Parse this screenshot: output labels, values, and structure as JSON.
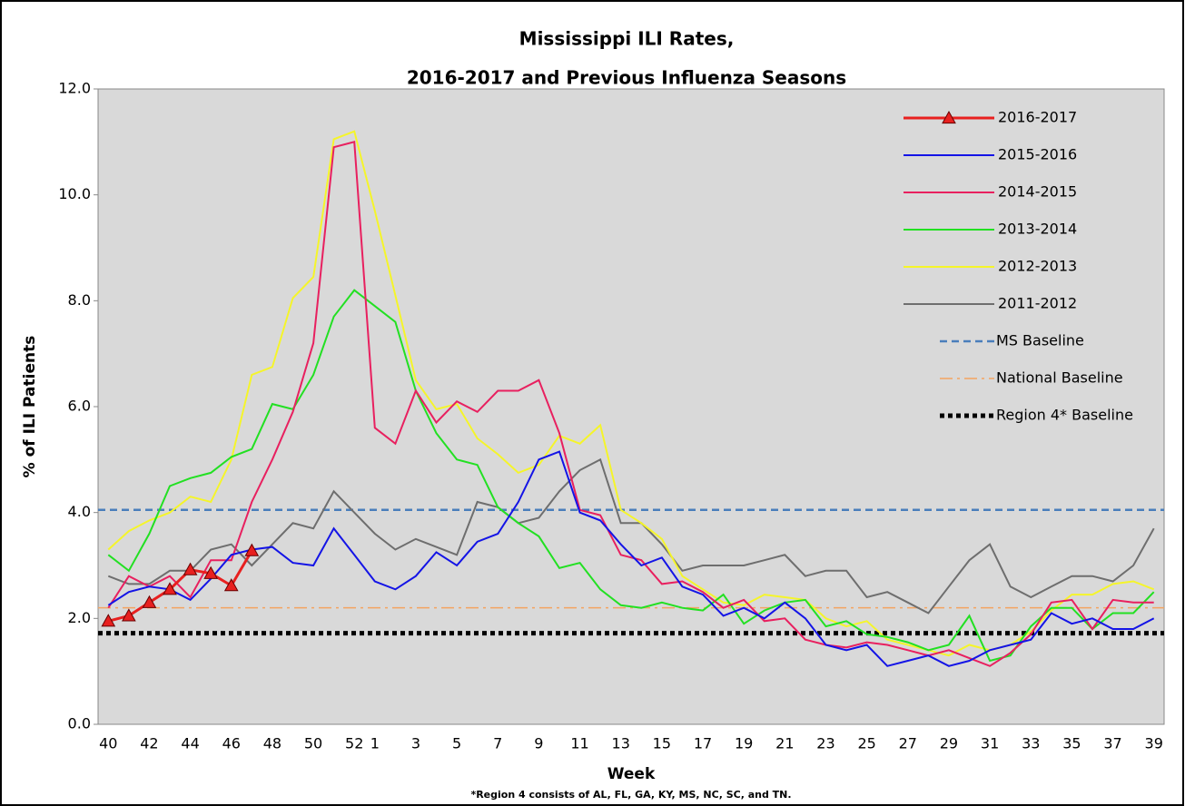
{
  "chart_data": {
    "type": "line",
    "title": [
      "Mississippi ILI Rates,",
      "2016-2017 and Previous Influenza Seasons"
    ],
    "x_label": "Week",
    "y_label": "% of ILI Patients",
    "footnote": "*Region 4 consists of AL, FL, GA, KY, MS, NC, SC, and TN.",
    "categories": [
      "40",
      null,
      "42",
      null,
      "44",
      null,
      "46",
      null,
      "48",
      null,
      "50",
      null,
      "52",
      "1",
      null,
      "3",
      null,
      "5",
      null,
      "7",
      null,
      "9",
      null,
      "11",
      null,
      "13",
      null,
      "15",
      null,
      "17",
      null,
      "19",
      null,
      "21",
      null,
      "23",
      null,
      "25",
      null,
      "27",
      null,
      "29",
      null,
      "31",
      null,
      "33",
      null,
      "35",
      null,
      "37",
      null,
      "39"
    ],
    "ylim": [
      0,
      12
    ],
    "yticks": [
      {
        "value": 0,
        "label": "0.0"
      },
      {
        "value": 2,
        "label": "2.0"
      },
      {
        "value": 4,
        "label": "4.0"
      },
      {
        "value": 6,
        "label": "6.0"
      },
      {
        "value": 8,
        "label": "8.0"
      },
      {
        "value": 10,
        "label": "10.0"
      },
      {
        "value": 12,
        "label": "12.0"
      }
    ],
    "grid": false,
    "plot_background": "#d9d9d9",
    "series": [
      {
        "name": "2016-2017",
        "color": "#e8201f",
        "marker": "triangle",
        "values": [
          1.95,
          2.05,
          2.3,
          2.55,
          2.92,
          2.85,
          2.62,
          3.28,
          null,
          null,
          null,
          null,
          null,
          null,
          null,
          null,
          null,
          null,
          null,
          null,
          null,
          null,
          null,
          null,
          null,
          null,
          null,
          null,
          null,
          null,
          null,
          null,
          null,
          null,
          null,
          null,
          null,
          null,
          null,
          null,
          null,
          null,
          null,
          null,
          null,
          null,
          null,
          null,
          null,
          null,
          null,
          null
        ]
      },
      {
        "name": "2015-2016",
        "color": "#1414e6",
        "values": [
          2.25,
          2.5,
          2.6,
          2.55,
          2.35,
          2.75,
          3.2,
          3.3,
          3.35,
          3.05,
          3.0,
          3.7,
          3.2,
          2.7,
          2.55,
          2.8,
          3.25,
          3.0,
          3.45,
          3.6,
          4.2,
          5.0,
          5.15,
          4.0,
          3.85,
          3.4,
          3.0,
          3.15,
          2.6,
          2.45,
          2.05,
          2.2,
          2.0,
          2.3,
          2.0,
          1.5,
          1.4,
          1.5,
          1.1,
          1.2,
          1.3,
          1.1,
          1.2,
          1.4,
          1.5,
          1.6,
          2.1,
          1.9,
          2.0,
          1.8,
          1.8,
          2.0
        ]
      },
      {
        "name": "2014-2015",
        "color": "#e8205f",
        "values": [
          2.2,
          2.8,
          2.6,
          2.8,
          2.4,
          3.1,
          3.1,
          4.2,
          5.0,
          5.9,
          7.2,
          10.9,
          11.0,
          5.6,
          5.3,
          6.3,
          5.7,
          6.1,
          5.9,
          6.3,
          6.3,
          6.5,
          5.5,
          4.05,
          3.95,
          3.2,
          3.1,
          2.65,
          2.7,
          2.5,
          2.2,
          2.35,
          1.95,
          2.0,
          1.6,
          1.5,
          1.45,
          1.55,
          1.5,
          1.4,
          1.3,
          1.4,
          1.25,
          1.1,
          1.35,
          1.7,
          2.3,
          2.35,
          1.8,
          2.35,
          2.3,
          2.3
        ]
      },
      {
        "name": "2013-2014",
        "color": "#22e022",
        "values": [
          3.2,
          2.9,
          3.6,
          4.5,
          4.65,
          4.75,
          5.05,
          5.2,
          6.05,
          5.95,
          6.6,
          7.7,
          8.2,
          7.9,
          7.6,
          6.3,
          5.5,
          5.0,
          4.9,
          4.1,
          3.8,
          3.55,
          2.95,
          3.05,
          2.55,
          2.25,
          2.2,
          2.3,
          2.2,
          2.15,
          2.45,
          1.9,
          2.15,
          2.3,
          2.35,
          1.85,
          1.95,
          1.7,
          1.65,
          1.55,
          1.4,
          1.5,
          2.05,
          1.2,
          1.3,
          1.85,
          2.2,
          2.2,
          1.8,
          2.1,
          2.1,
          2.5
        ]
      },
      {
        "name": "2012-2013",
        "color": "#f5f52a",
        "values": [
          3.3,
          3.65,
          3.85,
          4.0,
          4.3,
          4.2,
          5.0,
          6.6,
          6.75,
          8.05,
          8.45,
          11.05,
          11.2,
          9.7,
          8.1,
          6.5,
          5.95,
          6.05,
          5.4,
          5.1,
          4.75,
          4.9,
          5.45,
          5.3,
          5.65,
          4.05,
          3.8,
          3.5,
          2.8,
          2.55,
          2.3,
          2.25,
          2.45,
          2.4,
          2.35,
          2.0,
          1.85,
          1.95,
          1.6,
          1.5,
          1.4,
          1.3,
          1.5,
          1.4,
          1.5,
          1.75,
          2.15,
          2.45,
          2.45,
          2.65,
          2.7,
          2.55
        ]
      },
      {
        "name": "2011-2012",
        "color": "#6e6e6e",
        "values": [
          2.8,
          2.65,
          2.65,
          2.9,
          2.9,
          3.3,
          3.4,
          3.0,
          3.4,
          3.8,
          3.7,
          4.4,
          4.0,
          3.6,
          3.3,
          3.5,
          3.35,
          3.2,
          4.2,
          4.1,
          3.8,
          3.9,
          4.4,
          4.8,
          5.0,
          3.8,
          3.8,
          3.4,
          2.9,
          3.0,
          3.0,
          3.0,
          3.1,
          3.2,
          2.8,
          2.9,
          2.9,
          2.4,
          2.5,
          2.3,
          2.1,
          2.6,
          3.1,
          3.4,
          2.6,
          2.4,
          2.6,
          2.8,
          2.8,
          2.7,
          3.0,
          3.7
        ]
      }
    ],
    "reference_lines": [
      {
        "name": "MS Baseline",
        "value": 4.05,
        "color": "#4a7ebb",
        "style": "dashed"
      },
      {
        "name": "National Baseline",
        "value": 2.2,
        "color": "#f4a460",
        "style": "dash-dot"
      },
      {
        "name": "Region 4* Baseline",
        "value": 1.72,
        "color": "#000000",
        "style": "dotted"
      }
    ]
  }
}
